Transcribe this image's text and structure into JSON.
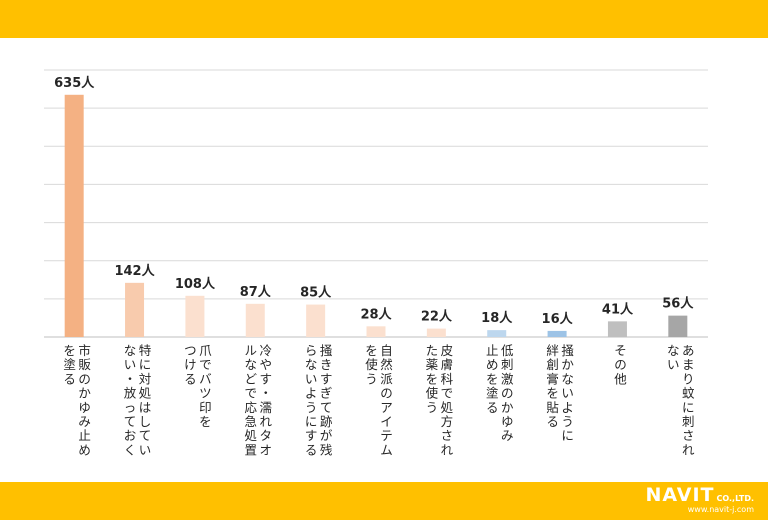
{
  "theme": {
    "band_color": "#ffc000",
    "grid_color": "#d9d9d9"
  },
  "logo": {
    "name": "NAVIT",
    "suffix": "CO.,LTD.",
    "url": "www.navit-j.com"
  },
  "chart_data": {
    "type": "bar",
    "unit": "人",
    "ylim": [
      0,
      700
    ],
    "grid": true,
    "categories": [
      [
        "市販のかゆみ止め",
        "を塗る"
      ],
      [
        "特に対処はしてい",
        "ない・放っておく"
      ],
      [
        "爪でバツ印を",
        "つける"
      ],
      [
        "冷やす・濡れタオ",
        "ルなどで応急処置"
      ],
      [
        "掻きすぎて跡が残",
        "らないようにする"
      ],
      [
        "自然派のアイテム",
        "を使う"
      ],
      [
        "皮膚科で処方され",
        "た薬を使う"
      ],
      [
        "低刺激のかゆみ",
        "止めを塗る"
      ],
      [
        "掻かないように",
        "絆創膏を貼る"
      ],
      [
        "その他"
      ],
      [
        "あまり蚊に刺され",
        "ない"
      ]
    ],
    "values": [
      635,
      142,
      108,
      87,
      85,
      28,
      22,
      18,
      16,
      41,
      56
    ],
    "value_labels": [
      "635人",
      "142人",
      "108人",
      "87人",
      "85人",
      "28人",
      "22人",
      "18人",
      "16人",
      "41人",
      "56人"
    ],
    "colors": [
      "#f4b183",
      "#f8cbad",
      "#fbe0cf",
      "#fbe0cf",
      "#fbe0cf",
      "#fbe0cf",
      "#fbe0cf",
      "#bdd7ee",
      "#9dc3e6",
      "#bfbfbf",
      "#a6a6a6"
    ]
  }
}
